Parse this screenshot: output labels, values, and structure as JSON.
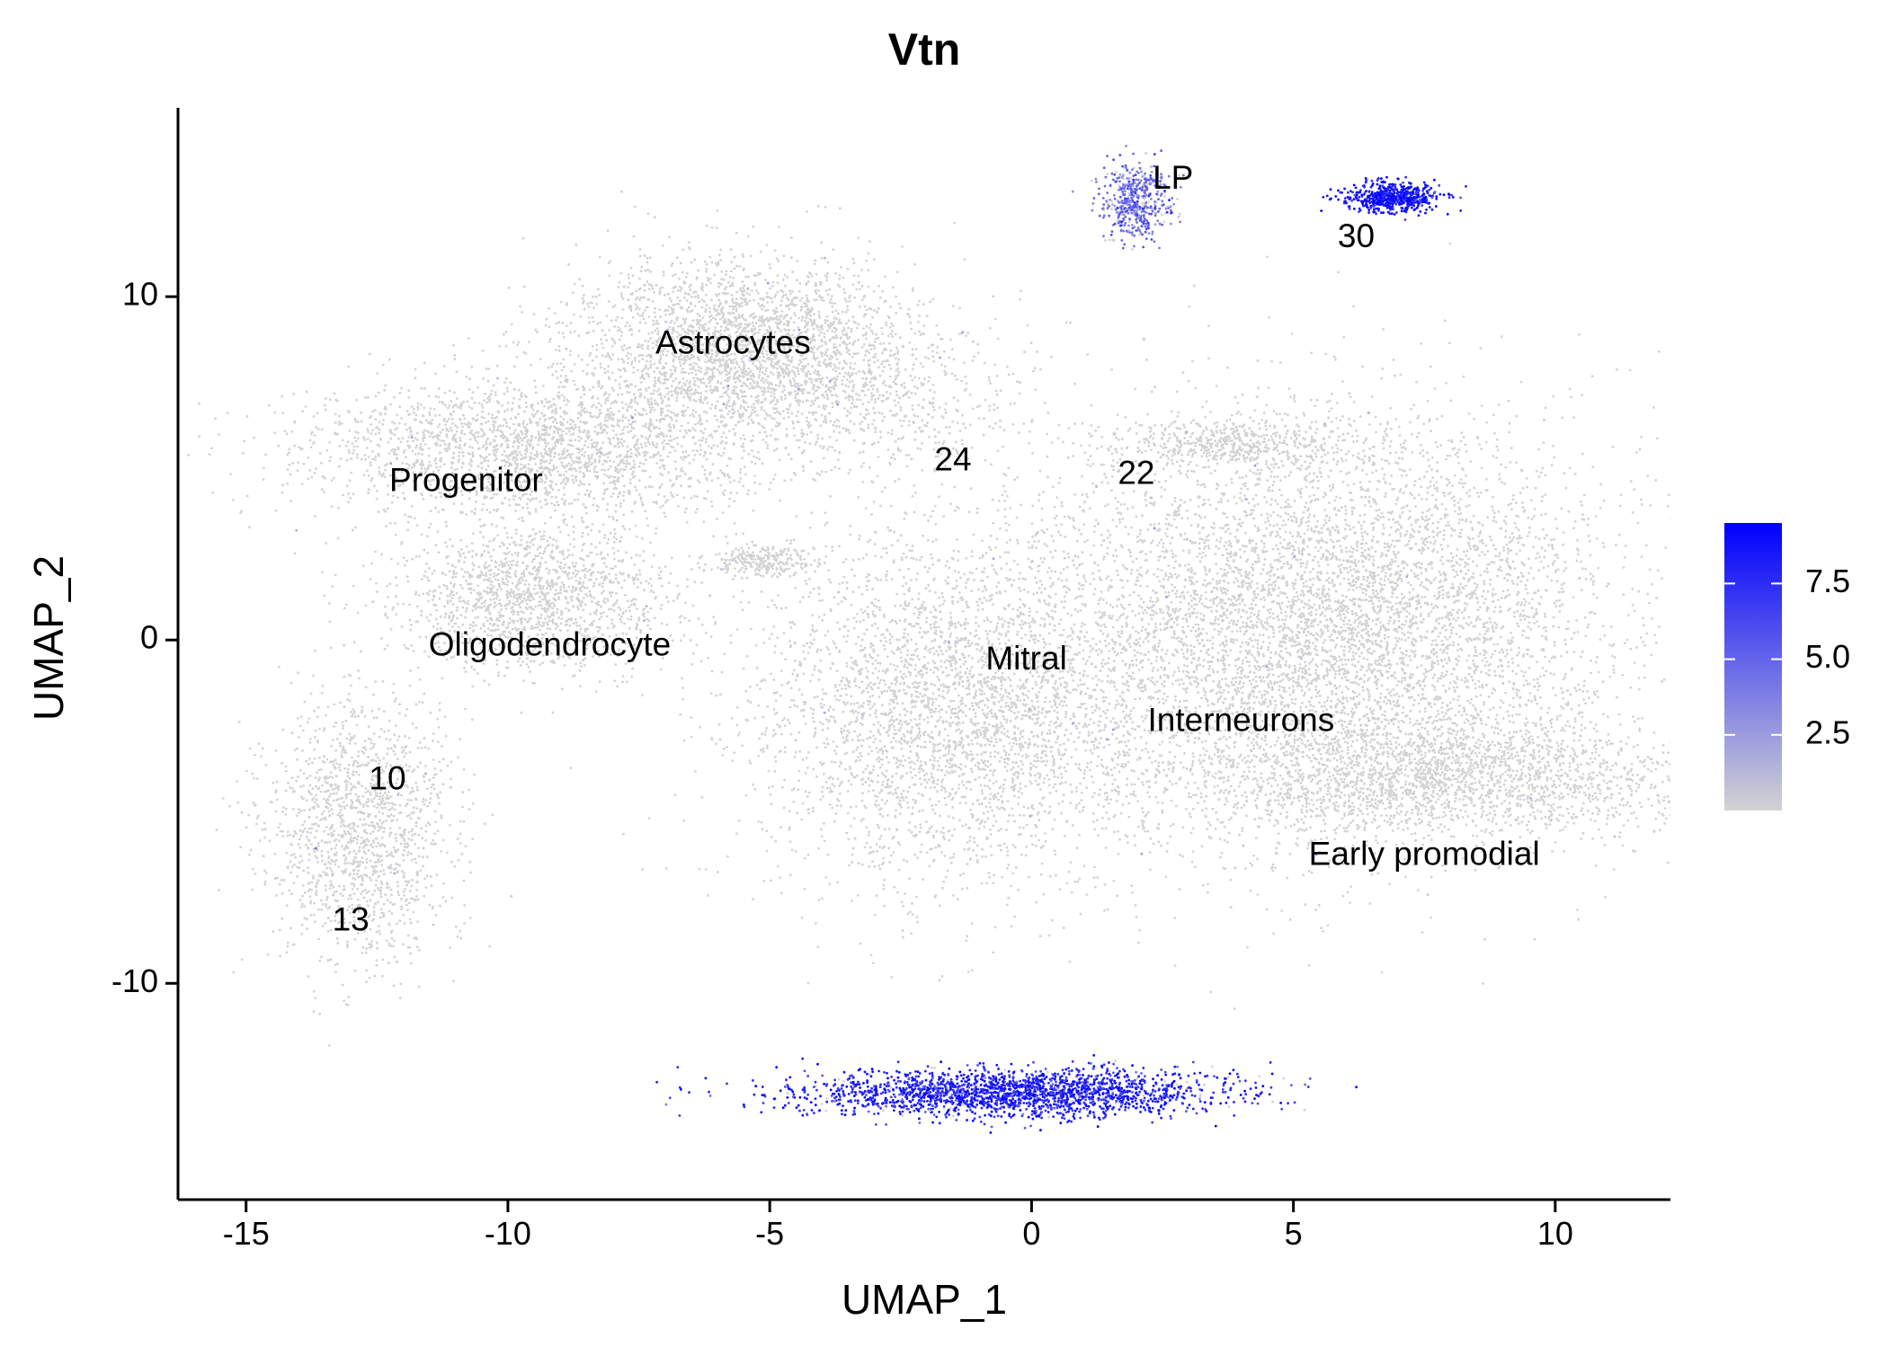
{
  "chart_data": {
    "type": "scatter",
    "title": "Vtn",
    "xlabel": "UMAP_1",
    "ylabel": "UMAP_2",
    "xlim": [
      -16.3,
      12.2
    ],
    "ylim": [
      -16.3,
      15.5
    ],
    "x_ticks": [
      -15,
      -10,
      -5,
      0,
      5,
      10
    ],
    "x_tick_labels": [
      "-15",
      "-10",
      "-5",
      "0",
      "5",
      "10"
    ],
    "y_ticks": [
      -10,
      0,
      10
    ],
    "y_tick_labels": [
      "-10",
      "0",
      "10"
    ],
    "grid": false,
    "legend": {
      "placement": "right",
      "type": "continuous color scale",
      "range": [
        0,
        9.5
      ],
      "breaks": [
        2.5,
        5.0,
        7.5
      ],
      "break_labels": [
        "2.5",
        "5.0",
        "7.5"
      ],
      "low_color": "#d3d3d3",
      "high_color": "#0000ff"
    },
    "cluster_labels": [
      {
        "text": "LP",
        "x": 2.7,
        "y": 13.4
      },
      {
        "text": "30",
        "x": 6.2,
        "y": 11.7
      },
      {
        "text": "Astrocytes",
        "x": -5.7,
        "y": 8.6
      },
      {
        "text": "24",
        "x": -1.5,
        "y": 5.2
      },
      {
        "text": "22",
        "x": 2.0,
        "y": 4.8
      },
      {
        "text": "Progenitor",
        "x": -10.8,
        "y": 4.6
      },
      {
        "text": "Oligodendrocyte",
        "x": -9.2,
        "y": -0.2
      },
      {
        "text": "Mitral",
        "x": -0.1,
        "y": -0.6
      },
      {
        "text": "Interneurons",
        "x": 4.0,
        "y": -2.4
      },
      {
        "text": "10",
        "x": -12.3,
        "y": -4.1
      },
      {
        "text": "Early promodial",
        "x": 7.5,
        "y": -6.3
      },
      {
        "text": "13",
        "x": -13.0,
        "y": -8.2
      }
    ],
    "clusters": [
      {
        "name": "LP",
        "cx": 2.0,
        "cy": 12.8,
        "sx": 0.3,
        "sy": 0.55,
        "n": 500,
        "expr_mean": 4.5,
        "expr_frac": 0.85
      },
      {
        "name": "30",
        "cx": 6.9,
        "cy": 12.9,
        "sx": 0.45,
        "sy": 0.22,
        "n": 600,
        "expr_mean": 9.0,
        "expr_frac": 0.98
      },
      {
        "name": "Bottom strip",
        "cx": -0.3,
        "cy": -13.2,
        "sx": 2.0,
        "sy": 0.35,
        "n": 2200,
        "expr_mean": 8.0,
        "expr_frac": 0.92
      },
      {
        "name": "Astrocytes",
        "cx": -5.5,
        "cy": 8.5,
        "sx": 1.7,
        "sy": 1.3,
        "n": 2800,
        "expr_mean": 0.2,
        "expr_frac": 0.01
      },
      {
        "name": "Progenitor",
        "cx": -9.5,
        "cy": 5.5,
        "sx": 2.2,
        "sy": 1.0,
        "n": 2200,
        "expr_mean": 0.2,
        "expr_frac": 0.01
      },
      {
        "name": "Oligodendrocyte",
        "cx": -9.5,
        "cy": 1.3,
        "sx": 1.4,
        "sy": 1.1,
        "n": 1500,
        "expr_mean": 0.2,
        "expr_frac": 0.01
      },
      {
        "name": "24",
        "cx": -2.5,
        "cy": 6.8,
        "sx": 1.2,
        "sy": 1.0,
        "n": 350,
        "expr_mean": 0.2,
        "expr_frac": 0.01
      },
      {
        "name": "22",
        "cx": 3.8,
        "cy": 5.7,
        "sx": 1.3,
        "sy": 0.35,
        "n": 500,
        "expr_mean": 0.2,
        "expr_frac": 0.01
      },
      {
        "name": "Small islet",
        "cx": -5.2,
        "cy": 2.3,
        "sx": 0.5,
        "sy": 0.25,
        "n": 250,
        "expr_mean": 0.2,
        "expr_frac": 0.02
      },
      {
        "name": "10/13",
        "cx": -12.8,
        "cy": -5.5,
        "sx": 0.9,
        "sy": 1.9,
        "n": 1500,
        "expr_mean": 0.2,
        "expr_frac": 0.01
      },
      {
        "name": "Mitral",
        "cx": -1.5,
        "cy": -2.0,
        "sx": 1.9,
        "sy": 2.6,
        "n": 3500,
        "expr_mean": 0.2,
        "expr_frac": 0.01
      },
      {
        "name": "Interneurons",
        "cx": 5.6,
        "cy": 0.5,
        "sx": 2.7,
        "sy": 3.0,
        "n": 6500,
        "expr_mean": 0.2,
        "expr_frac": 0.01
      },
      {
        "name": "Early promodial",
        "cx": 8.0,
        "cy": -4.0,
        "sx": 2.6,
        "sy": 0.9,
        "n": 2200,
        "expr_mean": 0.2,
        "expr_frac": 0.01
      }
    ]
  }
}
